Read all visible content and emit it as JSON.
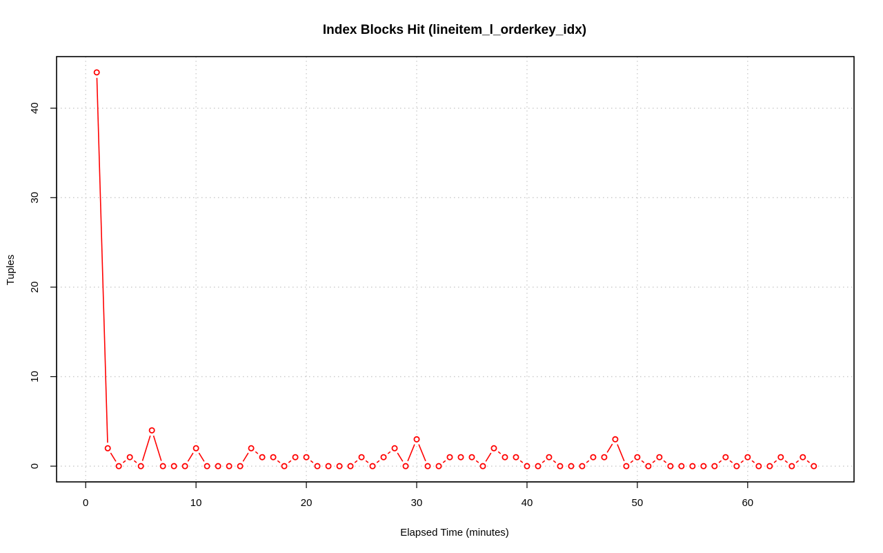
{
  "chart_data": {
    "type": "line",
    "title": "Index Blocks Hit (lineitem_l_orderkey_idx)",
    "xlabel": "Elapsed Time (minutes)",
    "ylabel": "Tuples",
    "xlim": [
      -2.64,
      69.64
    ],
    "ylim": [
      -1.76,
      45.76
    ],
    "x_ticks": [
      0,
      10,
      20,
      30,
      40,
      50,
      60
    ],
    "y_ticks": [
      0,
      10,
      20,
      30,
      40
    ],
    "grid": true,
    "legend": "none",
    "series": [
      {
        "color": "#ff0000",
        "marker": "open-circle",
        "x": [
          1,
          2,
          3,
          4,
          5,
          6,
          7,
          8,
          9,
          10,
          11,
          12,
          13,
          14,
          15,
          16,
          17,
          18,
          19,
          20,
          21,
          22,
          23,
          24,
          25,
          26,
          27,
          28,
          29,
          30,
          31,
          32,
          33,
          34,
          35,
          36,
          37,
          38,
          39,
          40,
          41,
          42,
          43,
          44,
          45,
          46,
          47,
          48,
          49,
          50,
          51,
          52,
          53,
          54,
          55,
          56,
          57,
          58,
          59,
          60,
          61,
          62,
          63,
          64,
          65,
          66
        ],
        "values": [
          44,
          2,
          0,
          1,
          0,
          4,
          0,
          0,
          0,
          2,
          0,
          0,
          0,
          0,
          2,
          1,
          1,
          0,
          1,
          1,
          0,
          0,
          0,
          0,
          1,
          0,
          1,
          2,
          0,
          3,
          0,
          0,
          1,
          1,
          1,
          0,
          2,
          1,
          1,
          0,
          0,
          1,
          0,
          0,
          0,
          1,
          1,
          3,
          0,
          1,
          0,
          1,
          0,
          0,
          0,
          0,
          0,
          1,
          0,
          1,
          0,
          0,
          1,
          0,
          1,
          0
        ]
      }
    ]
  }
}
